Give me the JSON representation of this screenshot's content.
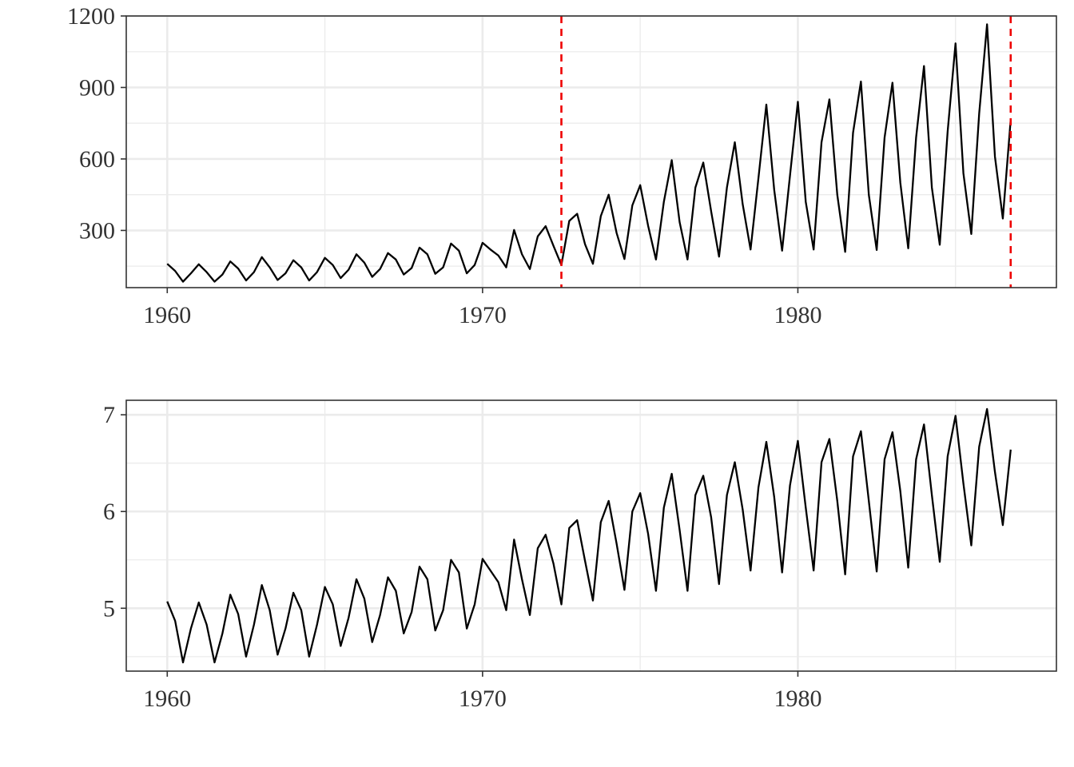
{
  "colors": {
    "series": "#000000",
    "reference_line": "#ee0000",
    "grid": "#ebebeb",
    "axis": "#333333"
  },
  "chart_data": [
    {
      "type": "line",
      "title": "",
      "xlabel": "",
      "ylabel": "",
      "xlim": [
        1958.7,
        1988.2
      ],
      "ylim": [
        60,
        1200
      ],
      "x_ticks": [
        1960,
        1970,
        1980
      ],
      "x_tick_labels": [
        "1960",
        "1970",
        "1980"
      ],
      "y_ticks": [
        300,
        600,
        900,
        1200
      ],
      "y_tick_labels": [
        "300",
        "600",
        "900",
        "1200"
      ],
      "grid": true,
      "legend": "none",
      "x_start": 1960.0,
      "x_step": 0.25,
      "series": [
        {
          "values": [
            160,
            130,
            85,
            120,
            158,
            125,
            85,
            115,
            170,
            140,
            90,
            125,
            188,
            145,
            92,
            120,
            175,
            145,
            90,
            125,
            185,
            155,
            100,
            135,
            200,
            165,
            105,
            138,
            205,
            178,
            115,
            142,
            228,
            200,
            118,
            145,
            245,
            215,
            120,
            155,
            248,
            220,
            195,
            145,
            302,
            200,
            138,
            275,
            318,
            235,
            155,
            340,
            370,
            242,
            160,
            360,
            450,
            290,
            180,
            405,
            490,
            320,
            178,
            420,
            595,
            335,
            178,
            480,
            585,
            380,
            190,
            480,
            670,
            410,
            220,
            520,
            828,
            470,
            215,
            530,
            840,
            420,
            220,
            670,
            850,
            450,
            210,
            710,
            925,
            450,
            218,
            690,
            920,
            500,
            225,
            690,
            990,
            480,
            240,
            715,
            1085,
            540,
            285,
            790,
            1165,
            610,
            350,
            765
          ]
        }
      ],
      "vertical_reference_lines": [
        1972.5,
        1986.75
      ]
    },
    {
      "type": "line",
      "title": "",
      "xlabel": "",
      "ylabel": "",
      "xlim": [
        1958.7,
        1988.2
      ],
      "ylim": [
        4.35,
        7.15
      ],
      "x_ticks": [
        1960,
        1970,
        1980
      ],
      "x_tick_labels": [
        "1960",
        "1970",
        "1980"
      ],
      "y_ticks": [
        5,
        6,
        7
      ],
      "y_tick_labels": [
        "5",
        "6",
        "7"
      ],
      "grid": true,
      "legend": "none",
      "x_start": 1960.0,
      "x_step": 0.25,
      "series": [
        {
          "values": [
            5.07,
            4.87,
            4.44,
            4.79,
            5.06,
            4.83,
            4.44,
            4.74,
            5.14,
            4.94,
            4.5,
            4.83,
            5.24,
            4.98,
            4.52,
            4.79,
            5.16,
            4.98,
            4.5,
            4.83,
            5.22,
            5.04,
            4.61,
            4.9,
            5.3,
            5.1,
            4.65,
            4.93,
            5.32,
            5.18,
            4.74,
            4.96,
            5.43,
            5.3,
            4.77,
            4.98,
            5.5,
            5.37,
            4.79,
            5.04,
            5.51,
            5.39,
            5.27,
            4.98,
            5.71,
            5.3,
            4.93,
            5.62,
            5.76,
            5.46,
            5.04,
            5.83,
            5.91,
            5.49,
            5.08,
            5.89,
            6.11,
            5.67,
            5.19,
            6.0,
            6.19,
            5.77,
            5.18,
            6.04,
            6.39,
            5.81,
            5.18,
            6.17,
            6.37,
            5.94,
            5.25,
            6.17,
            6.51,
            6.02,
            5.39,
            6.25,
            6.72,
            6.15,
            5.37,
            6.27,
            6.73,
            6.04,
            5.39,
            6.51,
            6.75,
            6.11,
            5.35,
            6.57,
            6.83,
            6.11,
            5.38,
            6.54,
            6.82,
            6.21,
            5.42,
            6.54,
            6.9,
            6.17,
            5.48,
            6.57,
            6.99,
            6.29,
            5.65,
            6.67,
            7.06,
            6.41,
            5.86,
            6.64
          ]
        }
      ]
    }
  ]
}
